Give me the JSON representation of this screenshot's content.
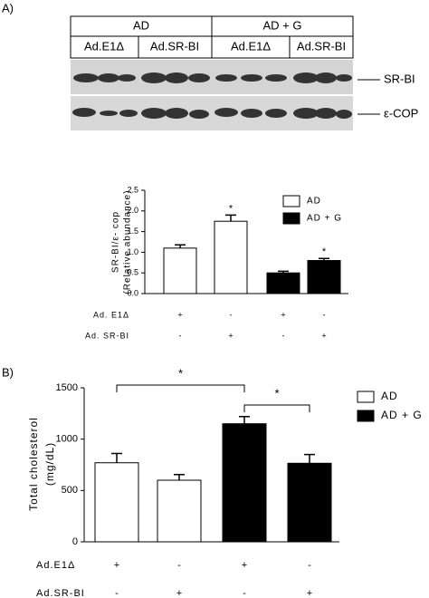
{
  "panel_labels": [
    "A)",
    "B)"
  ],
  "blot": {
    "groups": [
      "AD",
      "AD + G"
    ],
    "columns": [
      "Ad.E1Δ",
      "Ad.SR-BI",
      "Ad.E1Δ",
      "Ad.SR-BI"
    ],
    "rows": [
      "SR-BI",
      "ε-COP"
    ]
  },
  "chart_data": [
    {
      "type": "bar",
      "y_label": [
        "SR-BI/ε- cop",
        "(Relative abundance)"
      ],
      "categories": [
        null,
        null,
        null,
        null
      ],
      "series": [
        {
          "name": "AD",
          "color": "#ffffff",
          "values": [
            1.1,
            1.75,
            null,
            null
          ],
          "errors": [
            0.08,
            0.15,
            null,
            null
          ]
        },
        {
          "name": "AD + G",
          "color": "#000000",
          "values": [
            null,
            null,
            0.5,
            0.8
          ],
          "errors": [
            null,
            null,
            0.04,
            0.05
          ]
        }
      ],
      "ylim": [
        0,
        2.5
      ],
      "yticks": [
        {
          "value": 0,
          "label": "0.0"
        },
        {
          "value": 0.5,
          "label": "0.5"
        },
        {
          "value": 1,
          "label": "1.0"
        },
        {
          "value": 1.5,
          "label": "1.5"
        },
        {
          "value": 2,
          "label": "2.0"
        },
        {
          "value": 2.5,
          "label": "2.5"
        }
      ],
      "treatments": [
        {
          "label": "Ad. E1Δ",
          "marks": [
            "+",
            "-",
            "+",
            "-"
          ]
        },
        {
          "label": "Ad. SR-BI",
          "marks": [
            "-",
            "+",
            "-",
            "+"
          ]
        }
      ],
      "annotations": [
        "*",
        "*"
      ]
    },
    {
      "type": "bar",
      "y_label": [
        "Total cholesterol",
        "(mg/dL)"
      ],
      "categories": [
        null,
        null,
        null,
        null
      ],
      "series": [
        {
          "name": "AD",
          "color": "#ffffff",
          "values": [
            770,
            600,
            null,
            null
          ],
          "errors": [
            90,
            55,
            null,
            null
          ]
        },
        {
          "name": "AD + G",
          "color": "#000000",
          "values": [
            null,
            null,
            1150,
            765
          ],
          "errors": [
            null,
            null,
            70,
            85
          ]
        }
      ],
      "ylim": [
        0,
        1500
      ],
      "yticks": [
        0,
        500,
        1000,
        1500
      ],
      "treatments": [
        {
          "label": "Ad.E1Δ",
          "marks": [
            "+",
            "-",
            "+",
            "-"
          ]
        },
        {
          "label": "Ad.SR-BI",
          "marks": [
            "-",
            "+",
            "-",
            "+"
          ]
        }
      ],
      "annotations": [
        "*",
        "*"
      ]
    }
  ]
}
